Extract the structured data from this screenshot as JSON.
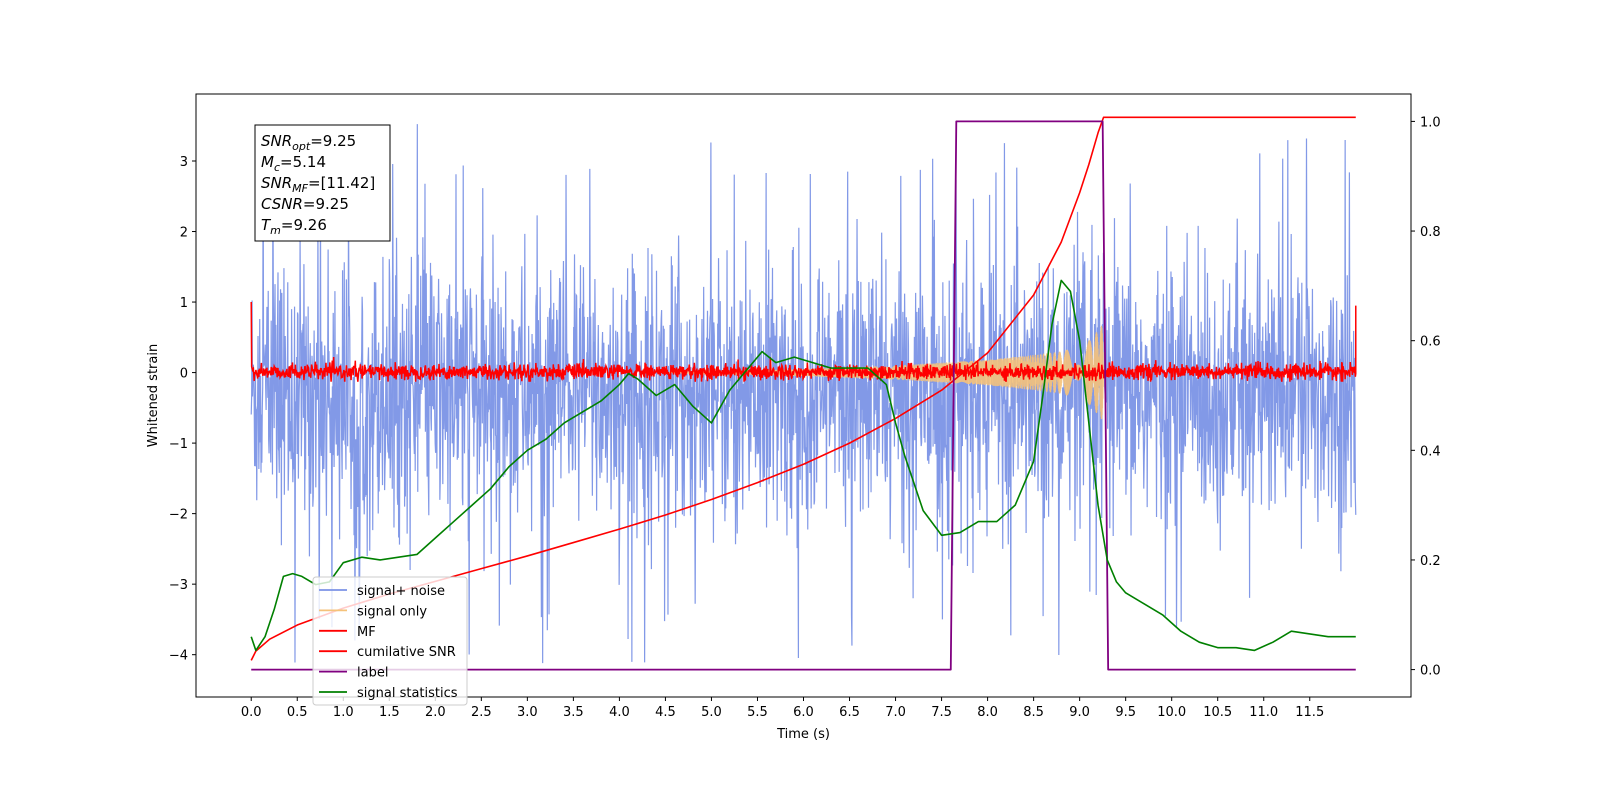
{
  "chart_data": {
    "type": "line",
    "title": "",
    "xlabel": "Time (s)",
    "ylabel": "Whitened strain",
    "xlim": [
      -0.6,
      12.6
    ],
    "ylim_left": [
      -4.6,
      3.95
    ],
    "ylim_right": [
      -0.05,
      1.05
    ],
    "x_ticks": [
      "0.0",
      "0.5",
      "1.0",
      "1.5",
      "2.0",
      "2.5",
      "3.0",
      "3.5",
      "4.0",
      "4.5",
      "5.0",
      "5.5",
      "6.0",
      "6.5",
      "7.0",
      "7.5",
      "8.0",
      "8.5",
      "9.0",
      "9.5",
      "10.0",
      "10.5",
      "11.0",
      "11.5"
    ],
    "y_ticks_left": [
      -4,
      -3,
      -2,
      -1,
      0,
      1,
      2,
      3
    ],
    "y_ticks_right": [
      "0.0",
      "0.2",
      "0.4",
      "0.6",
      "0.8",
      "1.0"
    ],
    "grid": false,
    "legend_placement": "lower-left",
    "legend": [
      {
        "label": "signal+ noise",
        "color": "#7b93e6"
      },
      {
        "label": "signal only",
        "color": "#f5c27a"
      },
      {
        "label": "MF",
        "color": "#ff0000"
      },
      {
        "label": "cumilative SNR",
        "color": "#ff0000"
      },
      {
        "label": "label",
        "color": "#800080"
      },
      {
        "label": "signal statistics",
        "color": "#008000"
      }
    ],
    "info_box": {
      "snr_opt": {
        "base": "SNR",
        "sub": "opt",
        "value": "=9.25"
      },
      "mc": {
        "base": "M",
        "sub": "c",
        "value": "=5.14"
      },
      "snr_mf": {
        "base": "SNR",
        "sub": "MF",
        "value": "=[11.42]"
      },
      "csnr": {
        "base": "CSNR",
        "sub": "",
        "value": "=9.25"
      },
      "tm": {
        "base": "T",
        "sub": "m",
        "value": "=9.26"
      }
    },
    "series": [
      {
        "name": "signal+ noise",
        "axis": "left",
        "color": "#7b93e6",
        "note": "noise band roughly -2.3..1.6 with spikes from -4.1 to 3.55",
        "range": [
          0,
          12
        ],
        "band": [
          -2.3,
          1.6
        ],
        "spike_min": -4.13,
        "spike_max": 3.55
      },
      {
        "name": "signal only",
        "axis": "left",
        "color": "#f5c27a",
        "envelope": {
          "x": [
            6.0,
            7.0,
            7.5,
            8.0,
            8.5,
            8.8,
            9.0,
            9.1,
            9.2,
            9.26
          ],
          "amp": [
            0.05,
            0.1,
            0.14,
            0.18,
            0.25,
            0.3,
            0.38,
            0.45,
            0.6,
            0.7
          ]
        }
      },
      {
        "name": "MF",
        "axis": "left",
        "color": "#ff0000",
        "range": [
          0,
          12
        ],
        "band": [
          -0.1,
          0.12
        ],
        "edges": {
          "start": 1.0,
          "end": 0.95
        }
      },
      {
        "name": "cumilative SNR",
        "axis": "left",
        "color": "#ff0000",
        "x": [
          0.0,
          0.05,
          0.2,
          0.5,
          1.0,
          1.5,
          2.0,
          2.5,
          3.0,
          3.5,
          4.0,
          4.5,
          5.0,
          5.5,
          6.0,
          6.5,
          7.0,
          7.5,
          8.0,
          8.5,
          8.8,
          9.0,
          9.1,
          9.2,
          9.26,
          9.3,
          12.0
        ],
        "y": [
          -4.08,
          -3.95,
          -3.78,
          -3.58,
          -3.34,
          -3.14,
          -2.96,
          -2.78,
          -2.6,
          -2.41,
          -2.22,
          -2.02,
          -1.8,
          -1.56,
          -1.3,
          -1.0,
          -0.65,
          -0.25,
          0.28,
          1.1,
          1.85,
          2.55,
          2.95,
          3.4,
          3.62,
          3.62,
          3.62
        ]
      },
      {
        "name": "label",
        "axis": "right",
        "color": "#800080",
        "x": [
          0.0,
          7.6,
          7.66,
          9.25,
          9.31,
          12.0
        ],
        "y": [
          0.0,
          0.0,
          1.0,
          1.0,
          0.0,
          0.0
        ]
      },
      {
        "name": "signal statistics",
        "axis": "right",
        "color": "#008000",
        "x": [
          0.0,
          0.05,
          0.15,
          0.25,
          0.35,
          0.45,
          0.55,
          0.7,
          0.85,
          1.0,
          1.2,
          1.4,
          1.6,
          1.8,
          2.0,
          2.2,
          2.4,
          2.6,
          2.8,
          3.0,
          3.2,
          3.4,
          3.6,
          3.8,
          4.0,
          4.1,
          4.2,
          4.4,
          4.6,
          4.8,
          5.0,
          5.2,
          5.4,
          5.55,
          5.7,
          5.9,
          6.1,
          6.3,
          6.5,
          6.7,
          6.9,
          7.0,
          7.1,
          7.3,
          7.5,
          7.7,
          7.9,
          8.1,
          8.3,
          8.5,
          8.6,
          8.7,
          8.8,
          8.9,
          9.0,
          9.1,
          9.2,
          9.3,
          9.4,
          9.5,
          9.7,
          9.9,
          10.1,
          10.3,
          10.5,
          10.7,
          10.9,
          11.1,
          11.3,
          11.5,
          11.7,
          11.9,
          12.0
        ],
        "y": [
          0.06,
          0.035,
          0.06,
          0.11,
          0.17,
          0.175,
          0.17,
          0.155,
          0.16,
          0.195,
          0.205,
          0.2,
          0.205,
          0.21,
          0.24,
          0.27,
          0.3,
          0.33,
          0.37,
          0.4,
          0.42,
          0.45,
          0.47,
          0.49,
          0.52,
          0.54,
          0.53,
          0.5,
          0.52,
          0.48,
          0.45,
          0.51,
          0.55,
          0.58,
          0.56,
          0.57,
          0.56,
          0.55,
          0.55,
          0.55,
          0.52,
          0.45,
          0.39,
          0.29,
          0.245,
          0.25,
          0.27,
          0.27,
          0.3,
          0.38,
          0.5,
          0.63,
          0.71,
          0.69,
          0.6,
          0.45,
          0.3,
          0.2,
          0.16,
          0.14,
          0.12,
          0.1,
          0.07,
          0.05,
          0.04,
          0.04,
          0.035,
          0.05,
          0.07,
          0.065,
          0.06,
          0.06,
          0.06
        ]
      }
    ]
  }
}
